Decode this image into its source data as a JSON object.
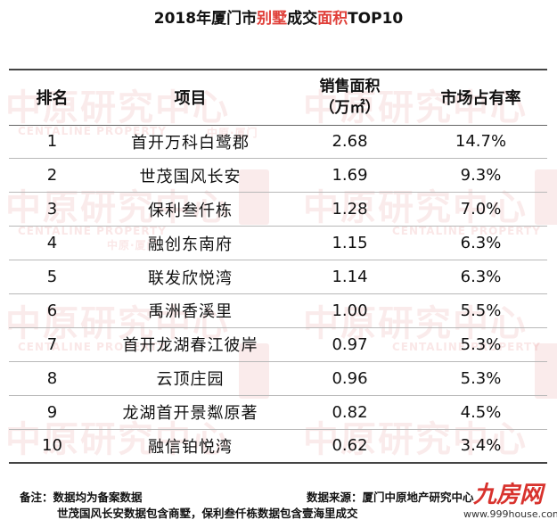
{
  "title": {
    "prefix": "2018年厦门市",
    "highlight1": "别墅",
    "middle": "成交",
    "highlight2": "面积",
    "suffix": "TOP10"
  },
  "table": {
    "headers": {
      "rank": "排名",
      "project": "项目",
      "area_line1": "销售面积",
      "area_line2": "（万㎡）",
      "share": "市场占有率"
    },
    "rows": [
      {
        "rank": "1",
        "project": "首开万科白鹭郡",
        "area": "2.68",
        "share": "14.7%"
      },
      {
        "rank": "2",
        "project": "世茂国风长安",
        "area": "1.69",
        "share": "9.3%"
      },
      {
        "rank": "3",
        "project": "保利叁仟栋",
        "area": "1.28",
        "share": "7.0%"
      },
      {
        "rank": "4",
        "project": "融创东南府",
        "area": "1.15",
        "share": "6.3%"
      },
      {
        "rank": "5",
        "project": "联发欣悦湾",
        "area": "1.14",
        "share": "6.3%"
      },
      {
        "rank": "6",
        "project": "禹洲香溪里",
        "area": "1.00",
        "share": "5.5%"
      },
      {
        "rank": "7",
        "project": "首开龙湖春江彼岸",
        "area": "0.97",
        "share": "5.3%"
      },
      {
        "rank": "8",
        "project": "云顶庄园",
        "area": "0.96",
        "share": "5.3%"
      },
      {
        "rank": "9",
        "project": "龙湖首开景粼原著",
        "area": "0.82",
        "share": "4.5%"
      },
      {
        "rank": "10",
        "project": "融信铂悦湾",
        "area": "0.62",
        "share": "3.4%"
      }
    ]
  },
  "footer": {
    "note_label": "备注：",
    "note_line1": "数据均为备案数据",
    "note_line2": "世茂国风长安数据包含商墅，保利叁仟栋数据包含壹海里成交",
    "source": "数据来源：厦门中原地产研究中心"
  },
  "watermark": {
    "text": "中原研究中心",
    "subtext": "中原·厦门",
    "english": "CENTALINE PROPERTY"
  },
  "logo": {
    "mark": "九房网",
    "url": "www.999house.com"
  },
  "colors": {
    "highlight": "#e0403a",
    "watermark": "#d23c3c",
    "logo": "#d8322d"
  }
}
